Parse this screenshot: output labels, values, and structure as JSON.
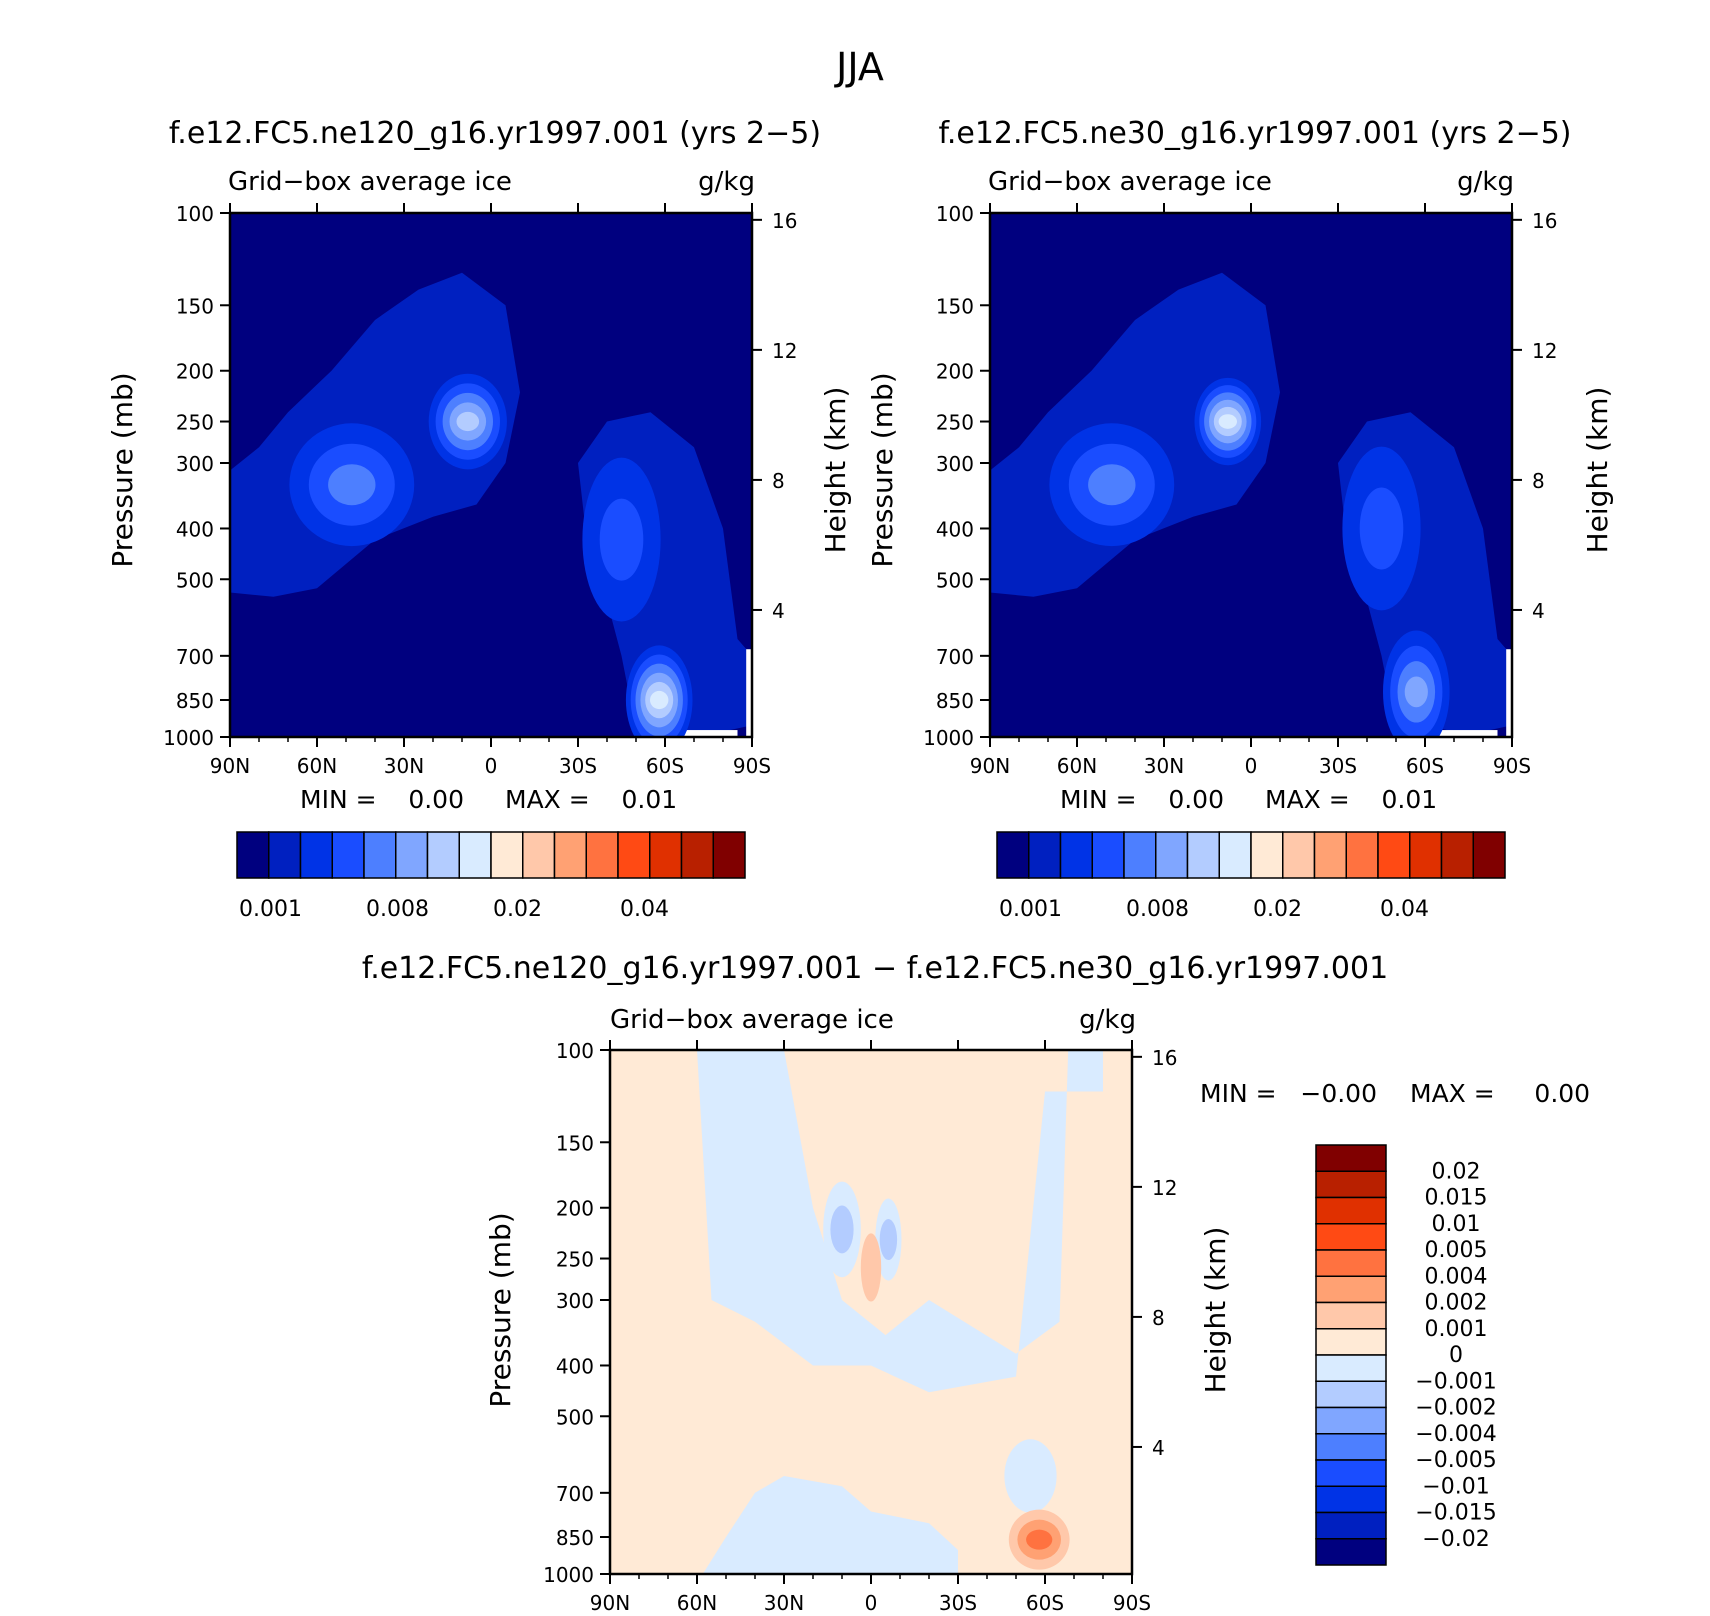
{
  "figure": {
    "title": "JJA"
  },
  "contour_colors": [
    "#00007f",
    "#0020c0",
    "#0033e6",
    "#1a4dff",
    "#4d7fff",
    "#80a6ff",
    "#b3ccff",
    "#d9ebff",
    "#ffead6",
    "#ffc8aa",
    "#ffa173",
    "#ff7240",
    "#ff4a14",
    "#e03000",
    "#b82000",
    "#800000"
  ],
  "diff_colors": [
    "#00007f",
    "#0020c0",
    "#0033e6",
    "#1a4dff",
    "#4d7fff",
    "#80a6ff",
    "#b3ccff",
    "#d9ebff",
    "#ffead6",
    "#ffc8aa",
    "#ffa173",
    "#ff7240",
    "#ff4a14",
    "#e03000",
    "#b82000",
    "#800000"
  ],
  "chart_data": [
    {
      "type": "heatmap",
      "title": "f.e12.FC5.ne120_g16.yr1997.001 (yrs 2−5)",
      "left_label": "Grid−box average ice",
      "right_label": "g/kg",
      "xlabel": "",
      "ylabel": "Pressure (mb)",
      "y2label": "Height (km)",
      "x_ticks": [
        "90N",
        "60N",
        "30N",
        "0",
        "30S",
        "60S",
        "90S"
      ],
      "y_ticks": [
        "100",
        "150",
        "200",
        "250",
        "300",
        "400",
        "500",
        "700",
        "850",
        "1000"
      ],
      "y2_ticks": [
        "16",
        "12",
        "8",
        "4"
      ],
      "min_text": "MIN =    0.00",
      "max_text": "MAX =    0.01",
      "levels": [
        "0.001",
        "0.008",
        "0.02",
        "0.04"
      ],
      "blobs": [
        {
          "lat": 8,
          "p": 250,
          "level": 6,
          "wlat": 12,
          "wp": 0.35
        },
        {
          "lat": 48,
          "p": 330,
          "level": 4,
          "wlat": 20,
          "wp": 0.45
        },
        {
          "lat": -45,
          "p": 420,
          "level": 3,
          "wlat": 12,
          "wp": 0.6
        },
        {
          "lat": -58,
          "p": 850,
          "level": 7,
          "wlat": 10,
          "wp": 0.4
        }
      ]
    },
    {
      "type": "heatmap",
      "title": "f.e12.FC5.ne30_g16.yr1997.001 (yrs 2−5)",
      "left_label": "Grid−box average ice",
      "right_label": "g/kg",
      "xlabel": "",
      "ylabel": "Pressure (mb)",
      "y2label": "Height (km)",
      "x_ticks": [
        "90N",
        "60N",
        "30N",
        "0",
        "30S",
        "60S",
        "90S"
      ],
      "y_ticks": [
        "100",
        "150",
        "200",
        "250",
        "300",
        "400",
        "500",
        "700",
        "850",
        "1000"
      ],
      "y2_ticks": [
        "16",
        "12",
        "8",
        "4"
      ],
      "min_text": "MIN =    0.00",
      "max_text": "MAX =    0.01",
      "levels": [
        "0.001",
        "0.008",
        "0.02",
        "0.04"
      ],
      "blobs": [
        {
          "lat": 8,
          "p": 250,
          "level": 7,
          "wlat": 10,
          "wp": 0.32
        },
        {
          "lat": 48,
          "p": 330,
          "level": 4,
          "wlat": 20,
          "wp": 0.45
        },
        {
          "lat": -45,
          "p": 400,
          "level": 3,
          "wlat": 12,
          "wp": 0.6
        },
        {
          "lat": -57,
          "p": 820,
          "level": 5,
          "wlat": 10,
          "wp": 0.45
        }
      ]
    },
    {
      "type": "heatmap",
      "title": "f.e12.FC5.ne120_g16.yr1997.001 − f.e12.FC5.ne30_g16.yr1997.001",
      "left_label": "Grid−box average ice",
      "right_label": "g/kg",
      "xlabel": "",
      "ylabel": "Pressure (mb)",
      "y2label": "Height (km)",
      "x_ticks": [
        "90N",
        "60N",
        "30N",
        "0",
        "30S",
        "60S",
        "90S"
      ],
      "y_ticks": [
        "100",
        "150",
        "200",
        "250",
        "300",
        "400",
        "500",
        "700",
        "850",
        "1000"
      ],
      "y2_ticks": [
        "16",
        "12",
        "8",
        "4"
      ],
      "min_text": "MIN =   −0.00",
      "max_text": "MAX =     0.00",
      "levels": [
        "0.02",
        "0.015",
        "0.01",
        "0.005",
        "0.004",
        "0.002",
        "0.001",
        "0",
        "−0.001",
        "−0.002",
        "−0.004",
        "−0.005",
        "−0.01",
        "−0.015",
        "−0.02"
      ],
      "blobs": [
        {
          "lat": 10,
          "p": 220,
          "level": 6,
          "wlat": 5,
          "wp": 0.35
        },
        {
          "lat": -6,
          "p": 230,
          "level": 6,
          "wlat": 3,
          "wp": 0.3
        },
        {
          "lat": 0,
          "p": 260,
          "level": 9,
          "wlat": 2,
          "wp": 0.25
        },
        {
          "lat": -58,
          "p": 860,
          "level": 11,
          "wlat": 9,
          "wp": 0.22
        }
      ]
    }
  ]
}
